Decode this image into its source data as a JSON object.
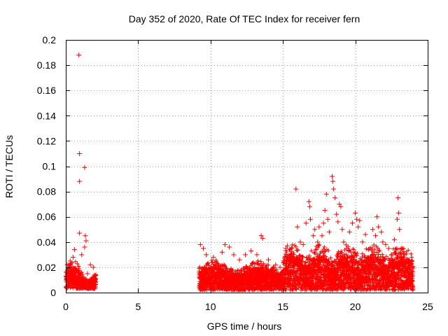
{
  "chart_data": {
    "type": "scatter",
    "title": "Day 352 of 2020, Rate Of TEC Index for receiver fern",
    "xlabel": "GPS time / hours",
    "ylabel": "ROTI / TECUs",
    "xlim": [
      0,
      25
    ],
    "ylim": [
      0,
      0.2
    ],
    "xticks": [
      0,
      5,
      10,
      15,
      20,
      25
    ],
    "xtick_labels": [
      "0",
      "5",
      "10",
      "15",
      "20",
      "25"
    ],
    "yticks": [
      0,
      0.02,
      0.04,
      0.06,
      0.08,
      0.1,
      0.12,
      0.14,
      0.16,
      0.18,
      0.2
    ],
    "ytick_labels": [
      "0",
      "0.02",
      "0.04",
      "0.06",
      "0.08",
      "0.1",
      "0.12",
      "0.14",
      "0.16",
      "0.18",
      "0.2"
    ],
    "grid": true,
    "marker": "plus",
    "colors": {
      "points": "#ff0000",
      "grid": "#a0a0a0",
      "axes": "#000000"
    },
    "series": [
      {
        "values": [
          [
            0.9,
            0.188
          ],
          [
            0.95,
            0.11
          ],
          [
            1.3,
            0.099
          ],
          [
            0.95,
            0.088
          ],
          [
            0.95,
            0.047
          ],
          [
            1.35,
            0.045
          ],
          [
            1.4,
            0.041
          ],
          [
            1.3,
            0.036
          ],
          [
            0.6,
            0.034
          ],
          [
            0.1,
            0.022
          ],
          [
            0.3,
            0.025
          ],
          [
            0.5,
            0.028
          ],
          [
            1.1,
            0.03
          ],
          [
            1.7,
            0.022
          ],
          [
            1.9,
            0.02
          ],
          [
            0.2,
            0.008
          ],
          [
            0.7,
            0.012
          ],
          [
            1.5,
            0.015
          ],
          [
            1.8,
            0.01
          ],
          [
            9.3,
            0.038
          ],
          [
            9.5,
            0.035
          ],
          [
            9.7,
            0.03
          ],
          [
            10.2,
            0.028
          ],
          [
            10.8,
            0.032
          ],
          [
            11.0,
            0.038
          ],
          [
            11.3,
            0.036
          ],
          [
            11.6,
            0.03
          ],
          [
            12.0,
            0.026
          ],
          [
            12.4,
            0.03
          ],
          [
            12.8,
            0.033
          ],
          [
            13.2,
            0.03
          ],
          [
            13.5,
            0.045
          ],
          [
            13.6,
            0.043
          ],
          [
            14.0,
            0.026
          ],
          [
            14.5,
            0.022
          ],
          [
            14.8,
            0.02
          ],
          [
            15.2,
            0.035
          ],
          [
            15.3,
            0.037
          ],
          [
            15.6,
            0.03
          ],
          [
            15.9,
            0.082
          ],
          [
            16.0,
            0.052
          ],
          [
            16.2,
            0.04
          ],
          [
            16.4,
            0.038
          ],
          [
            16.6,
            0.055
          ],
          [
            16.8,
            0.072
          ],
          [
            16.85,
            0.068
          ],
          [
            16.9,
            0.058
          ],
          [
            17.1,
            0.045
          ],
          [
            17.2,
            0.05
          ],
          [
            17.4,
            0.04
          ],
          [
            17.5,
            0.052
          ],
          [
            17.7,
            0.045
          ],
          [
            17.8,
            0.055
          ],
          [
            17.9,
            0.065
          ],
          [
            18.0,
            0.078
          ],
          [
            18.1,
            0.058
          ],
          [
            18.2,
            0.048
          ],
          [
            18.4,
            0.092
          ],
          [
            18.45,
            0.088
          ],
          [
            18.5,
            0.082
          ],
          [
            18.6,
            0.075
          ],
          [
            18.7,
            0.062
          ],
          [
            18.8,
            0.056
          ],
          [
            18.9,
            0.07
          ],
          [
            19.0,
            0.068
          ],
          [
            19.1,
            0.05
          ],
          [
            19.2,
            0.04
          ],
          [
            19.4,
            0.035
          ],
          [
            19.6,
            0.048
          ],
          [
            19.8,
            0.055
          ],
          [
            20.0,
            0.063
          ],
          [
            20.1,
            0.058
          ],
          [
            20.2,
            0.052
          ],
          [
            20.3,
            0.057
          ],
          [
            20.5,
            0.04
          ],
          [
            20.7,
            0.046
          ],
          [
            20.9,
            0.034
          ],
          [
            21.2,
            0.05
          ],
          [
            21.4,
            0.045
          ],
          [
            21.5,
            0.06
          ],
          [
            21.6,
            0.052
          ],
          [
            21.8,
            0.048
          ],
          [
            21.9,
            0.04
          ],
          [
            22.1,
            0.038
          ],
          [
            22.3,
            0.035
          ],
          [
            22.5,
            0.03
          ],
          [
            22.7,
            0.042
          ],
          [
            22.9,
            0.058
          ],
          [
            22.95,
            0.075
          ],
          [
            23.0,
            0.063
          ],
          [
            23.05,
            0.05
          ],
          [
            23.2,
            0.035
          ],
          [
            23.4,
            0.03
          ],
          [
            23.6,
            0.025
          ],
          [
            23.8,
            0.02
          ]
        ]
      }
    ]
  }
}
